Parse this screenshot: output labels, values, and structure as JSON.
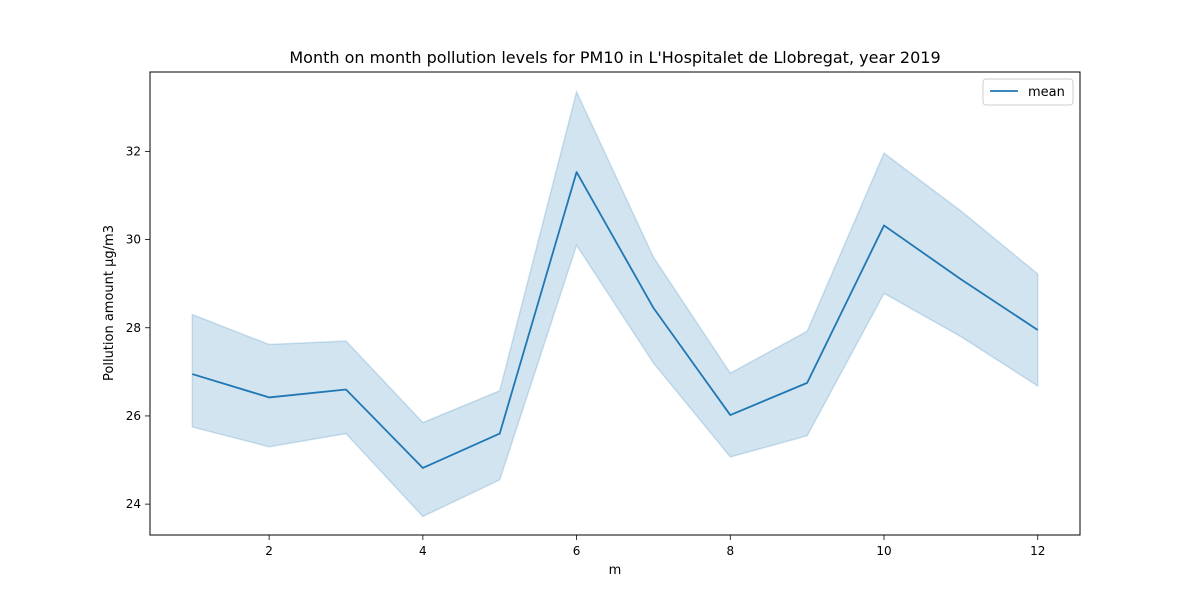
{
  "chart_data": {
    "type": "line",
    "title": "Month on month pollution levels for PM10 in L'Hospitalet de Llobregat, year 2019",
    "xlabel": "m",
    "ylabel": "Pollution amount µg/m3",
    "x": [
      1,
      2,
      3,
      4,
      5,
      6,
      7,
      8,
      9,
      10,
      11,
      12
    ],
    "series": [
      {
        "name": "mean",
        "values": [
          26.95,
          26.42,
          26.6,
          24.82,
          25.6,
          31.53,
          28.45,
          26.02,
          26.75,
          30.32,
          29.1,
          27.95
        ],
        "lower": [
          25.75,
          25.3,
          25.6,
          23.72,
          24.55,
          29.87,
          27.2,
          25.07,
          25.55,
          28.78,
          27.8,
          26.68
        ],
        "upper": [
          28.3,
          27.62,
          27.7,
          25.85,
          26.57,
          33.35,
          29.6,
          26.97,
          27.92,
          31.96,
          30.65,
          29.22
        ],
        "color": "#1f77b4",
        "band_color": "#1f77b4"
      }
    ],
    "xlim": [
      0.45,
      12.55
    ],
    "ylim": [
      23.3,
      33.8
    ],
    "xticks": [
      2,
      4,
      6,
      8,
      10,
      12
    ],
    "yticks": [
      24,
      26,
      28,
      30,
      32
    ],
    "grid": false,
    "legend": "top-right"
  }
}
